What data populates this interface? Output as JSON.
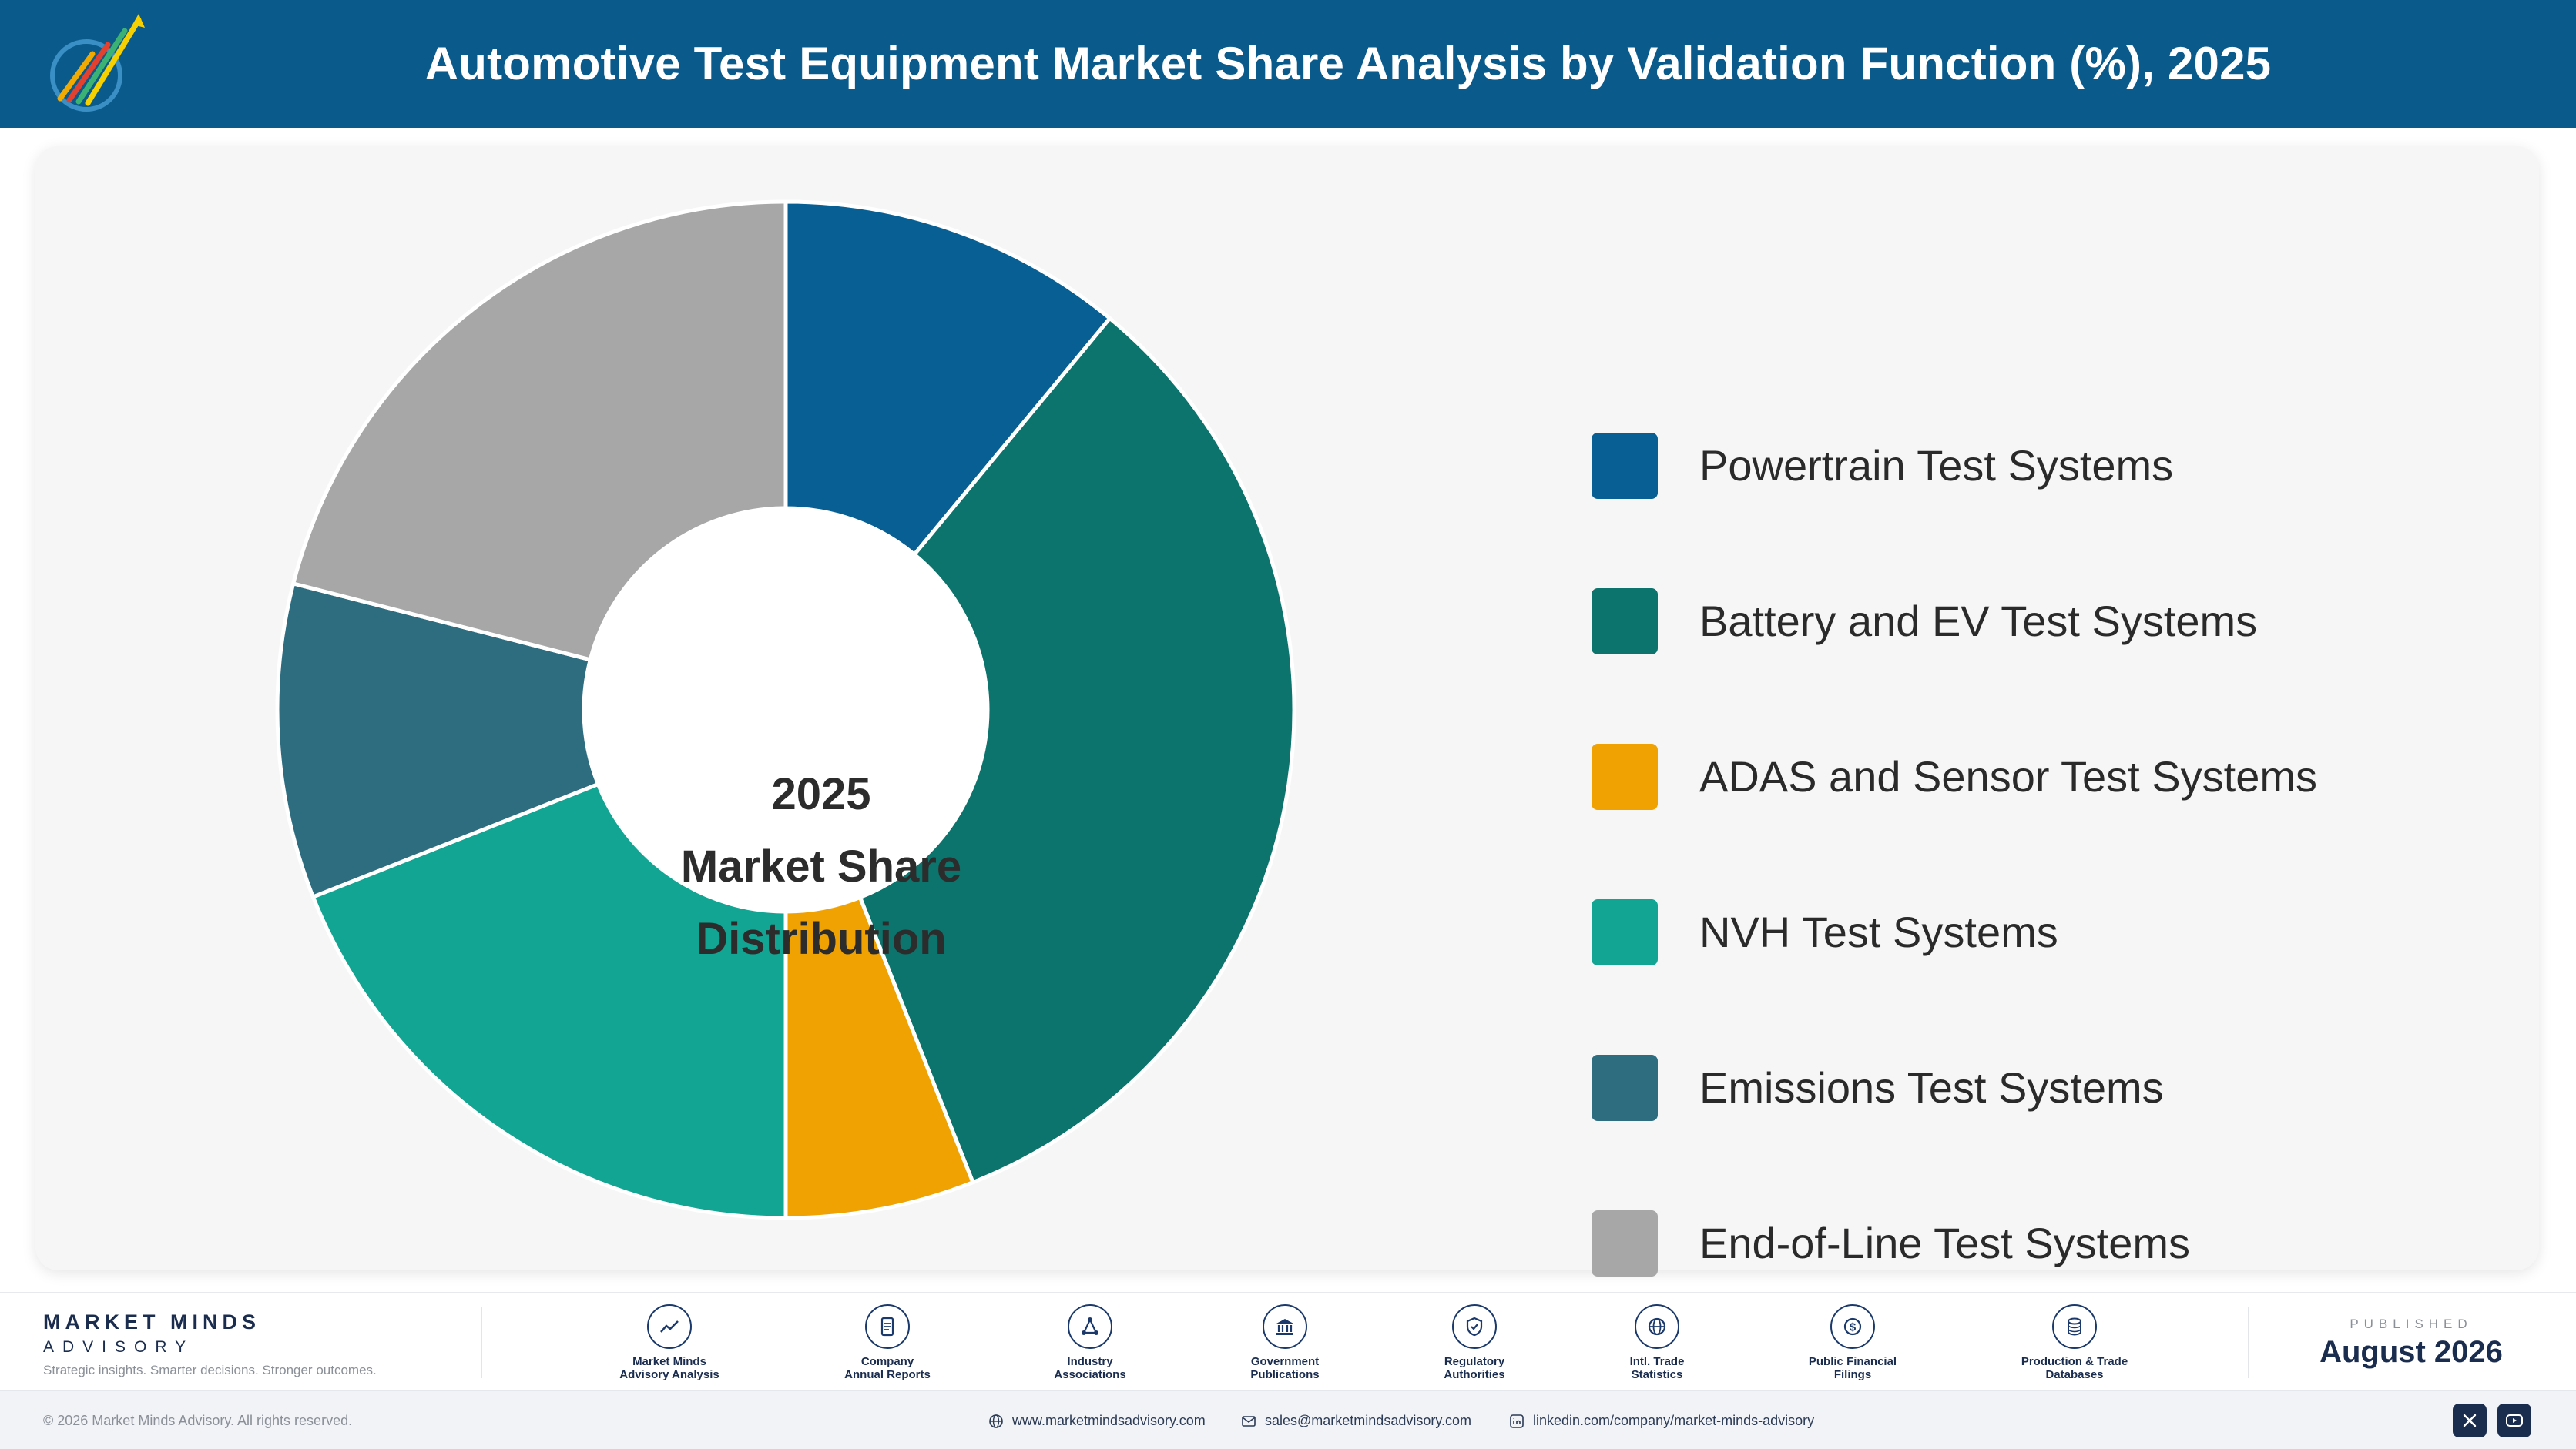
{
  "header": {
    "title": "Automotive Test Equipment Market Share Analysis by Validation Function (%), 2025",
    "logo_icon": "market-minds-logo-icon"
  },
  "chart_data": {
    "type": "pie",
    "style": "donut",
    "title": "Automotive Test Equipment Market Share Analysis by Validation Function (%), 2025",
    "center_label": [
      "2025",
      "Market Share",
      "Distribution"
    ],
    "categories": [
      "Powertrain Test Systems",
      "Battery and EV Test Systems",
      "ADAS and Sensor Test Systems",
      "NVH Test Systems",
      "Emissions Test Systems",
      "End-of-Line Test Systems"
    ],
    "values": [
      11,
      33,
      6,
      19,
      10,
      21
    ],
    "colors": [
      "#075f94",
      "#0c746c",
      "#f0a202",
      "#12a593",
      "#2e6c80",
      "#a7a7a7"
    ],
    "legend_position": "right"
  },
  "footer": {
    "brand_name": "MARKET MINDS",
    "brand_sub": "ADVISORY",
    "brand_tagline": "Strategic insights. Smarter decisions. Stronger outcomes.",
    "sources": [
      {
        "label": "Market Minds\nAdvisory Analysis",
        "icon": "trend-chart-icon"
      },
      {
        "label": "Company\nAnnual Reports",
        "icon": "document-icon"
      },
      {
        "label": "Industry\nAssociations",
        "icon": "network-icon"
      },
      {
        "label": "Government\nPublications",
        "icon": "government-building-icon"
      },
      {
        "label": "Regulatory\nAuthorities",
        "icon": "shield-check-icon"
      },
      {
        "label": "Intl. Trade\nStatistics",
        "icon": "globe-icon"
      },
      {
        "label": "Public Financial\nFilings",
        "icon": "dollar-coin-icon"
      },
      {
        "label": "Production & Trade\nDatabases",
        "icon": "database-icon"
      }
    ],
    "published_label": "PUBLISHED",
    "published_date": "August 2026"
  },
  "bottom_bar": {
    "copyright": "© 2026 Market Minds Advisory. All rights reserved.",
    "website": "www.marketmindsadvisory.com",
    "email": "sales@marketmindsadvisory.com",
    "linkedin": "linkedin.com/company/market-minds-advisory",
    "social_icons": [
      "x-icon",
      "youtube-icon"
    ]
  }
}
